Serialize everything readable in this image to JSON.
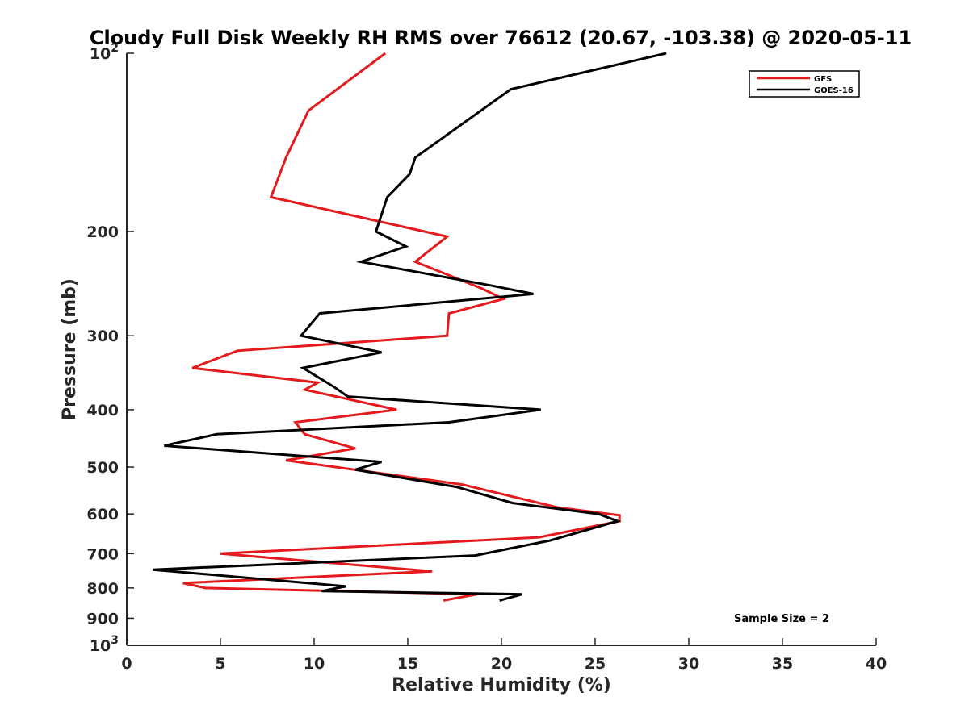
{
  "chart_data": {
    "type": "line",
    "title": "Cloudy Full Disk Weekly RH RMS over 76612 (20.67, -103.38) @ 2020-05-11",
    "xlabel": "Relative Humidity (%)",
    "ylabel": "Pressure (mb)",
    "xlim": [
      0,
      40
    ],
    "ylim": [
      100,
      1000
    ],
    "yscale": "log",
    "y_reversed": true,
    "grid": false,
    "legend_position": "top-right",
    "x_ticks": [
      "0",
      "5",
      "10",
      "15",
      "20",
      "25",
      "30",
      "35",
      "40"
    ],
    "y_ticks": [
      {
        "value": 100,
        "label": "10",
        "exp": "2"
      },
      {
        "value": 200,
        "label": "200"
      },
      {
        "value": 300,
        "label": "300"
      },
      {
        "value": 400,
        "label": "400"
      },
      {
        "value": 500,
        "label": "500"
      },
      {
        "value": 600,
        "label": "600"
      },
      {
        "value": 700,
        "label": "700"
      },
      {
        "value": 800,
        "label": "800"
      },
      {
        "value": 900,
        "label": "900"
      },
      {
        "value": 1000,
        "label": "10",
        "exp": "3"
      }
    ],
    "annotation": "Sample Size = 2",
    "series": [
      {
        "name": "GFS",
        "color": "#e41a1c",
        "points": [
          [
            13.8,
            100
          ],
          [
            9.7,
            125
          ],
          [
            8.5,
            150
          ],
          [
            7.7,
            175
          ],
          [
            17.1,
            204
          ],
          [
            15.4,
            225
          ],
          [
            19.0,
            250
          ],
          [
            20.1,
            260
          ],
          [
            17.2,
            275
          ],
          [
            17.1,
            300
          ],
          [
            5.9,
            318
          ],
          [
            3.5,
            340
          ],
          [
            10.2,
            360
          ],
          [
            9.5,
            370
          ],
          [
            14.4,
            400
          ],
          [
            9.0,
            420
          ],
          [
            9.5,
            440
          ],
          [
            12.2,
            465
          ],
          [
            8.5,
            487
          ],
          [
            17.9,
            535
          ],
          [
            23.0,
            585
          ],
          [
            26.3,
            603
          ],
          [
            26.3,
            617
          ],
          [
            22.0,
            657
          ],
          [
            5.0,
            700
          ],
          [
            16.3,
            750
          ],
          [
            3.0,
            785
          ],
          [
            4.2,
            800
          ],
          [
            18.7,
            820
          ],
          [
            16.9,
            840
          ]
        ]
      },
      {
        "name": "GOES-16",
        "color": "#000000",
        "points": [
          [
            28.8,
            100
          ],
          [
            20.5,
            115
          ],
          [
            15.4,
            150
          ],
          [
            15.1,
            160
          ],
          [
            13.9,
            175
          ],
          [
            13.3,
            200
          ],
          [
            14.9,
            212
          ],
          [
            12.5,
            225
          ],
          [
            19.5,
            247
          ],
          [
            21.7,
            255
          ],
          [
            10.3,
            275
          ],
          [
            9.3,
            300
          ],
          [
            13.6,
            320
          ],
          [
            9.4,
            340
          ],
          [
            11.0,
            365
          ],
          [
            11.8,
            380
          ],
          [
            22.1,
            400
          ],
          [
            17.2,
            420
          ],
          [
            4.8,
            440
          ],
          [
            2.0,
            460
          ],
          [
            13.6,
            490
          ],
          [
            12.2,
            505
          ],
          [
            14.5,
            520
          ],
          [
            17.6,
            540
          ],
          [
            20.6,
            575
          ],
          [
            25.2,
            600
          ],
          [
            26.2,
            617
          ],
          [
            22.6,
            665
          ],
          [
            18.6,
            705
          ],
          [
            1.4,
            745
          ],
          [
            11.7,
            795
          ],
          [
            10.4,
            810
          ],
          [
            21.1,
            820
          ],
          [
            19.9,
            840
          ]
        ]
      }
    ]
  }
}
